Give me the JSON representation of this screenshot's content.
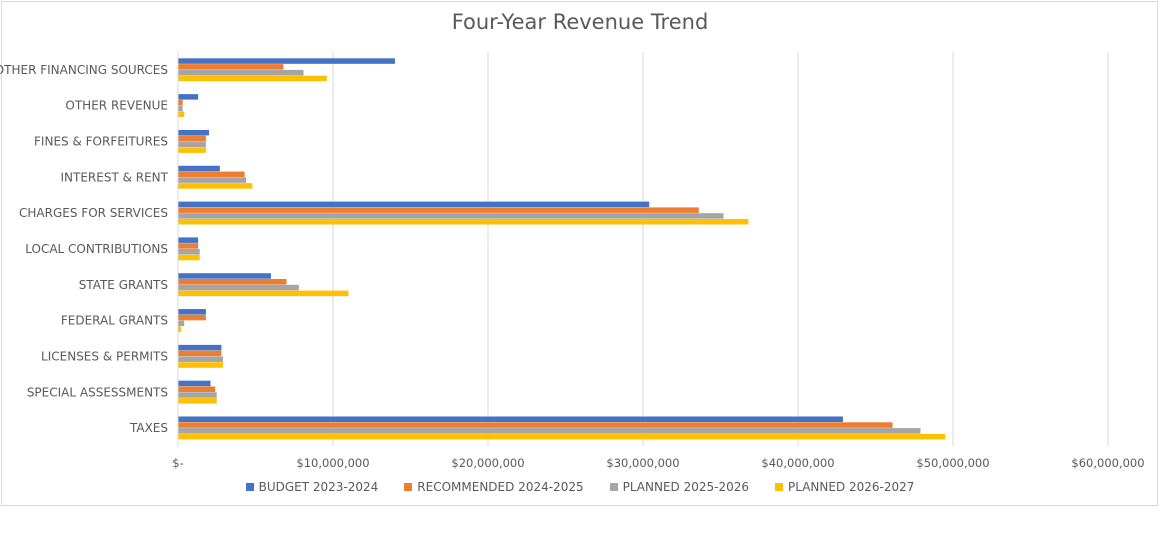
{
  "chart_data": {
    "type": "bar",
    "orientation": "horizontal",
    "title": "Four-Year Revenue Trend",
    "xlabel": "",
    "ylabel": "",
    "xlim": [
      0,
      60000000
    ],
    "x_ticks": [
      0,
      10000000,
      20000000,
      30000000,
      40000000,
      50000000,
      60000000
    ],
    "x_tick_labels": [
      "$-",
      "$10,000,000",
      "$20,000,000",
      "$30,000,000",
      "$40,000,000",
      "$50,000,000",
      "$60,000,000"
    ],
    "grid": "vertical major gridlines",
    "legend_position": "bottom",
    "categories": [
      "TAXES",
      "SPECIAL ASSESSMENTS",
      "LICENSES & PERMITS",
      "FEDERAL GRANTS",
      "STATE GRANTS",
      "LOCAL CONTRIBUTIONS",
      "CHARGES FOR SERVICES",
      "INTEREST & RENT",
      "FINES & FORFEITURES",
      "OTHER REVENUE",
      "OTHER FINANCING SOURCES"
    ],
    "series": [
      {
        "name": "BUDGET 2023-2024",
        "color": "#4472C4",
        "values": [
          42900000,
          2100000,
          2800000,
          1800000,
          6000000,
          1300000,
          30400000,
          2700000,
          2000000,
          1300000,
          14000000
        ]
      },
      {
        "name": "RECOMMENDED 2024-2025",
        "color": "#ED7D31",
        "values": [
          46100000,
          2400000,
          2800000,
          1800000,
          7000000,
          1300000,
          33600000,
          4300000,
          1800000,
          300000,
          6800000
        ]
      },
      {
        "name": "PLANNED 2025-2026",
        "color": "#A5A5A5",
        "values": [
          47900000,
          2500000,
          2900000,
          400000,
          7800000,
          1400000,
          35200000,
          4400000,
          1800000,
          300000,
          8100000
        ]
      },
      {
        "name": "PLANNED 2026-2027",
        "color": "#FFC000",
        "values": [
          49500000,
          2500000,
          2900000,
          200000,
          11000000,
          1400000,
          36800000,
          4800000,
          1800000,
          400000,
          9600000
        ]
      }
    ]
  }
}
